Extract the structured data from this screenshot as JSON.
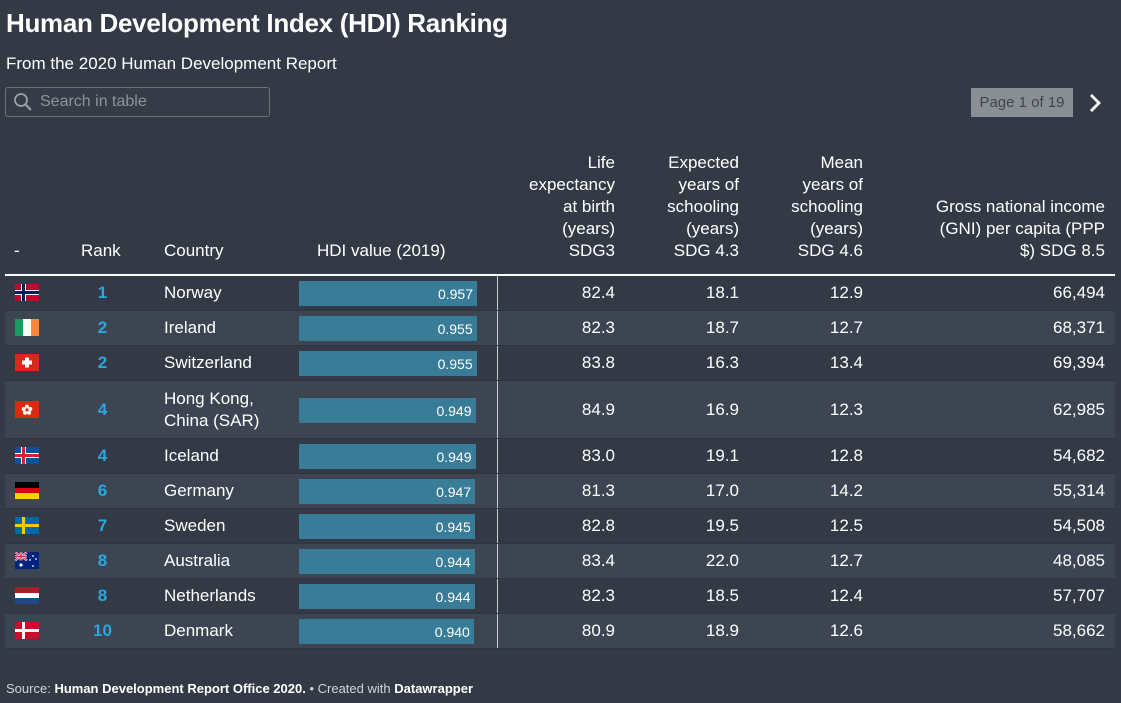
{
  "title": "Human Development Index (HDI) Ranking",
  "subtitle": "From the 2020 Human Development Report",
  "search": {
    "placeholder": "Search in table"
  },
  "pager": {
    "label": "Page 1 of 19"
  },
  "columns": {
    "flag": "-",
    "rank": "Rank",
    "country": "Country",
    "hdi": "HDI value (2019)",
    "life_lines": [
      "Life",
      "expectancy",
      "at birth",
      "(years)",
      "SDG3"
    ],
    "exp_lines": [
      "Expected",
      "years of",
      "schooling",
      "(years)",
      "SDG 4.3"
    ],
    "mean_lines": [
      "Mean",
      "years of",
      "schooling",
      "(years)",
      "SDG 4.6"
    ],
    "gni_lines": [
      "Gross national income",
      "(GNI) per capita (PPP",
      "$) SDG 8.5"
    ]
  },
  "hdi_bar_color": "#387c98",
  "rank_color": "#2ba6df",
  "rows": [
    {
      "flag": "norway-flag-icon",
      "rank": "1",
      "country": "Norway",
      "hdi": "0.957",
      "hdi_value": 0.957,
      "life": "82.4",
      "exp": "18.1",
      "mean": "12.9",
      "gni": "66,494"
    },
    {
      "flag": "ireland-flag-icon",
      "rank": "2",
      "country": "Ireland",
      "hdi": "0.955",
      "hdi_value": 0.955,
      "life": "82.3",
      "exp": "18.7",
      "mean": "12.7",
      "gni": "68,371"
    },
    {
      "flag": "switzerland-flag-icon",
      "rank": "2",
      "country": "Switzerland",
      "hdi": "0.955",
      "hdi_value": 0.955,
      "life": "83.8",
      "exp": "16.3",
      "mean": "13.4",
      "gni": "69,394"
    },
    {
      "flag": "hong-kong-flag-icon",
      "rank": "4",
      "country": "Hong Kong, China (SAR)",
      "hdi": "0.949",
      "hdi_value": 0.949,
      "life": "84.9",
      "exp": "16.9",
      "mean": "12.3",
      "gni": "62,985"
    },
    {
      "flag": "iceland-flag-icon",
      "rank": "4",
      "country": "Iceland",
      "hdi": "0.949",
      "hdi_value": 0.949,
      "life": "83.0",
      "exp": "19.1",
      "mean": "12.8",
      "gni": "54,682"
    },
    {
      "flag": "germany-flag-icon",
      "rank": "6",
      "country": "Germany",
      "hdi": "0.947",
      "hdi_value": 0.947,
      "life": "81.3",
      "exp": "17.0",
      "mean": "14.2",
      "gni": "55,314"
    },
    {
      "flag": "sweden-flag-icon",
      "rank": "7",
      "country": "Sweden",
      "hdi": "0.945",
      "hdi_value": 0.945,
      "life": "82.8",
      "exp": "19.5",
      "mean": "12.5",
      "gni": "54,508"
    },
    {
      "flag": "australia-flag-icon",
      "rank": "8",
      "country": "Australia",
      "hdi": "0.944",
      "hdi_value": 0.944,
      "life": "83.4",
      "exp": "22.0",
      "mean": "12.7",
      "gni": "48,085"
    },
    {
      "flag": "netherlands-flag-icon",
      "rank": "8",
      "country": "Netherlands",
      "hdi": "0.944",
      "hdi_value": 0.944,
      "life": "82.3",
      "exp": "18.5",
      "mean": "12.4",
      "gni": "57,707"
    },
    {
      "flag": "denmark-flag-icon",
      "rank": "10",
      "country": "Denmark",
      "hdi": "0.940",
      "hdi_value": 0.94,
      "life": "80.9",
      "exp": "18.9",
      "mean": "12.6",
      "gni": "58,662"
    }
  ],
  "footer": {
    "source_label": "Source:",
    "source": "Human Development Report Office 2020.",
    "created_label": "• Created with",
    "tool": "Datawrapper"
  }
}
